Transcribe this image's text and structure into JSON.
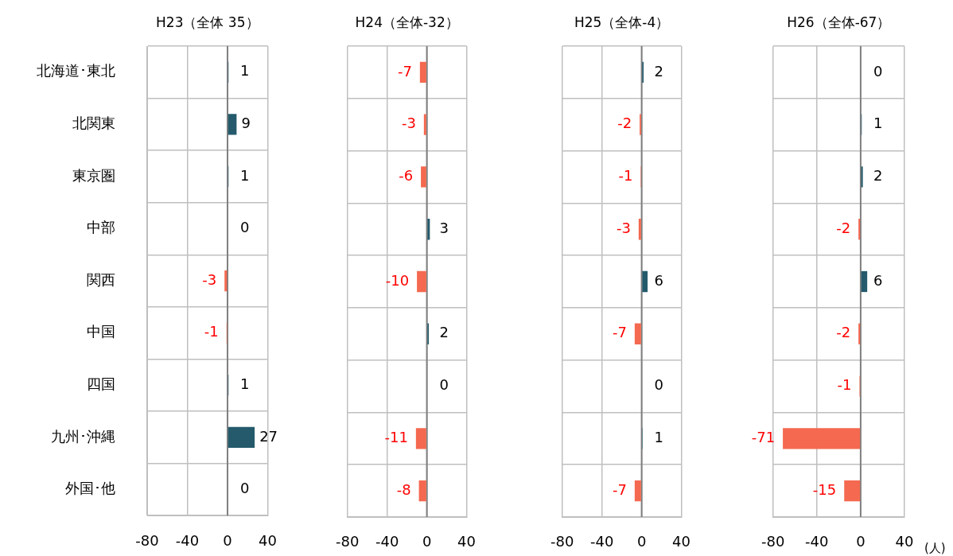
{
  "chart_data": [
    {
      "type": "bar",
      "orientation": "horizontal",
      "title": "H23（全体 35）",
      "categories": [
        "北海道･東北",
        "北関東",
        "東京圏",
        "中部",
        "関西",
        "中国",
        "四国",
        "九州･沖縄",
        "外国･他"
      ],
      "values": [
        1,
        9,
        1,
        0,
        -3,
        -1,
        1,
        27,
        0
      ],
      "colors": [
        "#245a6b",
        "#245a6b",
        "#245a6b",
        "#245a6b",
        "#f4694f",
        "#f4694f",
        "#245a6b",
        "#245a6b",
        "#245a6b"
      ],
      "xlim": [
        -80,
        40
      ],
      "xticks": [
        -80,
        -40,
        0,
        40
      ],
      "grid": true,
      "data_labels": true
    },
    {
      "type": "bar",
      "orientation": "horizontal",
      "title": "H24（全体-32）",
      "categories": [
        null,
        null,
        null,
        null,
        null,
        null,
        null,
        null,
        null
      ],
      "values": [
        -7,
        -3,
        -6,
        3,
        -10,
        2,
        0,
        -11,
        -8
      ],
      "colors": [
        "#f4694f",
        "#f4694f",
        "#f4694f",
        "#245a6b",
        "#f4694f",
        "#245a6b",
        "#245a6b",
        "#f4694f",
        "#f4694f"
      ],
      "xlim": [
        -80,
        40
      ],
      "xticks": [
        -80,
        -40,
        0,
        40
      ],
      "grid": true,
      "data_labels": true,
      "tick_labels": "x"
    },
    {
      "type": "bar",
      "orientation": "horizontal",
      "title": "H25（全体-4）",
      "categories": [
        null,
        null,
        null,
        null,
        null,
        null,
        null,
        null,
        null
      ],
      "values": [
        2,
        -2,
        -1,
        -3,
        6,
        -7,
        0,
        1,
        -7
      ],
      "colors": [
        "#245a6b",
        "#f4694f",
        "#f4694f",
        "#f4694f",
        "#245a6b",
        "#f4694f",
        "#245a6b",
        "#245a6b",
        "#f4694f"
      ],
      "xlim": [
        -80,
        40
      ],
      "xticks": [
        -80,
        -40,
        0,
        40
      ],
      "grid": true,
      "data_labels": true,
      "tick_labels": "x"
    },
    {
      "type": "bar",
      "orientation": "horizontal",
      "title": "H26（全体-67）",
      "categories": [
        null,
        null,
        null,
        null,
        null,
        null,
        null,
        null,
        null
      ],
      "values": [
        0,
        1,
        2,
        -2,
        6,
        -2,
        -1,
        -71,
        -15
      ],
      "colors": [
        "#245a6b",
        "#245a6b",
        "#245a6b",
        "#f4694f",
        "#245a6b",
        "#f4694f",
        "#f4694f",
        "#f4694f",
        "#f4694f"
      ],
      "xlim": [
        -80,
        40
      ],
      "xticks": [
        -80,
        -40,
        0,
        40
      ],
      "grid": true,
      "data_labels": true,
      "tick_labels": "x",
      "annotations": [
        "(人)"
      ]
    }
  ]
}
